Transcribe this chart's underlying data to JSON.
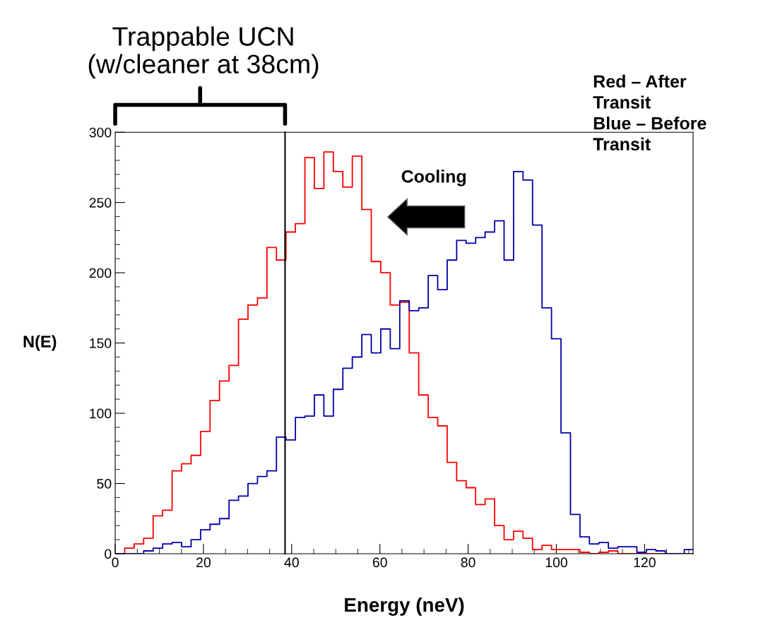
{
  "chart_data": {
    "type": "histogram",
    "xlabel": "Energy (neV)",
    "ylabel": "N(E)",
    "bins": [
      0,
      2.15,
      4.3,
      6.45,
      8.6,
      10.75,
      12.9,
      15.05,
      17.2,
      19.35,
      21.5,
      23.65,
      25.8,
      27.95,
      30.1,
      32.25,
      34.4,
      36.55,
      38.7,
      40.85,
      43,
      45.15,
      47.3,
      49.45,
      51.6,
      53.75,
      55.9,
      58.05,
      60.2,
      62.35,
      64.5,
      66.65,
      68.8,
      70.95,
      73.1,
      75.25,
      77.4,
      79.55,
      81.7,
      83.85,
      86,
      88.15,
      90.3,
      92.45,
      94.6,
      96.75,
      98.9,
      101.05,
      103.2,
      105.35,
      107.5,
      109.65,
      111.8,
      113.95,
      116.1,
      118.25,
      120.4,
      122.55,
      124.7,
      126.85,
      129,
      131
    ],
    "series": [
      {
        "color": "#ff0000",
        "values": [
          0,
          4,
          7,
          11,
          27,
          31,
          59,
          64,
          70,
          87,
          109,
          123,
          134,
          167,
          177,
          182,
          218,
          209,
          229,
          235,
          282,
          260,
          286,
          272,
          261,
          283,
          245,
          208,
          200,
          177,
          179,
          143,
          113,
          97,
          91,
          65,
          52,
          47,
          35,
          39,
          20,
          10,
          16,
          11,
          3,
          6,
          3,
          3,
          3,
          1,
          0,
          1,
          2,
          0,
          0,
          0,
          0,
          0,
          0,
          0,
          0
        ]
      },
      {
        "color": "#0000aa",
        "values": [
          0,
          0,
          0,
          2,
          4,
          7,
          8,
          5,
          10,
          17,
          21,
          25,
          38,
          41,
          50,
          55,
          59,
          83,
          81,
          97,
          98,
          113,
          98,
          117,
          132,
          140,
          156,
          143,
          160,
          146,
          180,
          173,
          175,
          198,
          188,
          209,
          223,
          221,
          225,
          229,
          237,
          209,
          272,
          266,
          234,
          175,
          153,
          86,
          28,
          12,
          7,
          8,
          4,
          5,
          5,
          1,
          3,
          2,
          0,
          0,
          3
        ]
      }
    ],
    "xlim": [
      0,
      131
    ],
    "ylim": [
      0,
      300
    ],
    "xticks": [
      0,
      20,
      40,
      60,
      80,
      100,
      120
    ],
    "yticks": [
      0,
      50,
      100,
      150,
      200,
      250,
      300
    ],
    "ref_lines": [
      {
        "axis": "x",
        "value": 38.5,
        "color": "#000000"
      }
    ],
    "annotations": [
      "Trappable UCN\n(w/cleaner at 38cm)",
      "Cooling",
      "Red – After\nTransit\nBlue – Before\nTransit"
    ],
    "grid": false,
    "legend": false
  }
}
